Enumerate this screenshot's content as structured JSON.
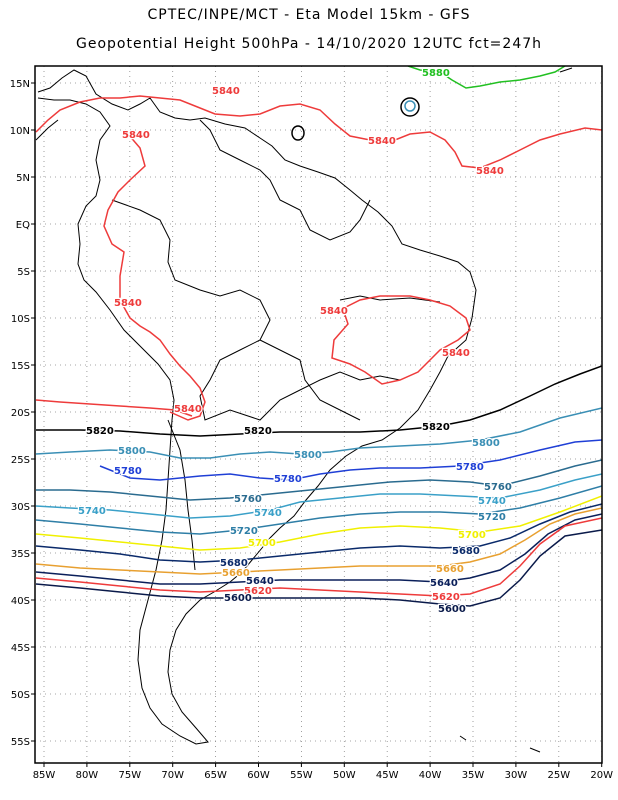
{
  "title_line1": "CPTEC/INPE/MCT -  Eta Model 15km - GFS",
  "title_line2": "Geopotential Height 500hPa - 14/10/2020 12UTC fct=247h",
  "lat_labels": [
    "15N",
    "10N",
    "5N",
    "EQ",
    "5S",
    "10S",
    "15S",
    "20S",
    "25S",
    "30S",
    "35S",
    "40S",
    "45S",
    "50S",
    "55S"
  ],
  "lon_labels": [
    "85W",
    "80W",
    "75W",
    "70W",
    "65W",
    "60W",
    "55W",
    "50W",
    "45W",
    "40W",
    "35W",
    "30W",
    "25W",
    "20W"
  ],
  "contour_colors": {
    "5880": "#22c022",
    "5840": "#ee3b3b",
    "5820": "#000000",
    "5800": "#3a8fb5",
    "5780": "#1f3fd6",
    "5760": "#2a6b8f",
    "5740": "#3aa0c8",
    "5720": "#2e7ea6",
    "5700": "#f0f000",
    "5680": "#0a2a6a",
    "5660": "#e8a030",
    "5640": "#0a1f5a",
    "5620": "#ee3b3b",
    "5600": "#0a1a4a"
  },
  "contour_labels": [
    {
      "text": "5880",
      "color_key": "5880"
    },
    {
      "text": "5840",
      "color_key": "5840"
    },
    {
      "text": "5840",
      "color_key": "5840"
    },
    {
      "text": "5840",
      "color_key": "5840"
    },
    {
      "text": "5840",
      "color_key": "5840"
    },
    {
      "text": "5840",
      "color_key": "5840"
    },
    {
      "text": "5840",
      "color_key": "5840"
    },
    {
      "text": "5840",
      "color_key": "5840"
    },
    {
      "text": "5840",
      "color_key": "5840"
    },
    {
      "text": "5820",
      "color_key": "5820"
    },
    {
      "text": "5820",
      "color_key": "5820"
    },
    {
      "text": "5820",
      "color_key": "5820"
    },
    {
      "text": "5800",
      "color_key": "5800"
    },
    {
      "text": "5800",
      "color_key": "5800"
    },
    {
      "text": "5800",
      "color_key": "5800"
    },
    {
      "text": "5780",
      "color_key": "5780"
    },
    {
      "text": "5780",
      "color_key": "5780"
    },
    {
      "text": "5780",
      "color_key": "5780"
    },
    {
      "text": "5760",
      "color_key": "5760"
    },
    {
      "text": "5760",
      "color_key": "5760"
    },
    {
      "text": "5740",
      "color_key": "5740"
    },
    {
      "text": "5740",
      "color_key": "5740"
    },
    {
      "text": "5740",
      "color_key": "5740"
    },
    {
      "text": "5720",
      "color_key": "5720"
    },
    {
      "text": "5720",
      "color_key": "5720"
    },
    {
      "text": "5700",
      "color_key": "5700"
    },
    {
      "text": "5700",
      "color_key": "5700"
    },
    {
      "text": "5680",
      "color_key": "5680"
    },
    {
      "text": "5680",
      "color_key": "5680"
    },
    {
      "text": "5660",
      "color_key": "5660"
    },
    {
      "text": "5660",
      "color_key": "5660"
    },
    {
      "text": "5640",
      "color_key": "5640"
    },
    {
      "text": "5640",
      "color_key": "5640"
    },
    {
      "text": "5620",
      "color_key": "5620"
    },
    {
      "text": "5620",
      "color_key": "5620"
    },
    {
      "text": "5600",
      "color_key": "5600"
    },
    {
      "text": "5600",
      "color_key": "5600"
    }
  ]
}
